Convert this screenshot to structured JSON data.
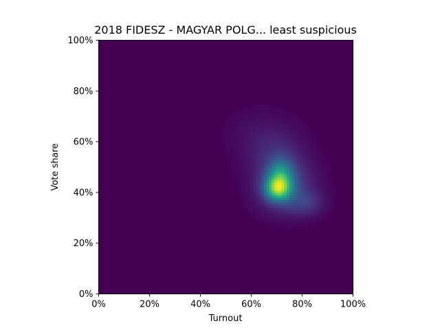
{
  "chart_data": {
    "type": "heatmap",
    "title": "2018 FIDESZ - MAGYAR POLG... least suspicious",
    "xlabel": "Turnout",
    "ylabel": "Vote share",
    "xlim": [
      0,
      1
    ],
    "ylim": [
      0,
      1
    ],
    "x_ticks": [
      "0%",
      "20%",
      "40%",
      "60%",
      "80%",
      "100%"
    ],
    "y_ticks": [
      "0%",
      "20%",
      "40%",
      "60%",
      "80%",
      "100%"
    ],
    "colormap": "viridis",
    "grid": false,
    "density_components": [
      {
        "x": 0.705,
        "y": 0.415,
        "sx": 0.035,
        "sy": 0.033,
        "w": 1.0
      },
      {
        "x": 0.715,
        "y": 0.47,
        "sx": 0.035,
        "sy": 0.045,
        "w": 0.62
      },
      {
        "x": 0.73,
        "y": 0.43,
        "sx": 0.075,
        "sy": 0.07,
        "w": 0.38
      },
      {
        "x": 0.81,
        "y": 0.36,
        "sx": 0.05,
        "sy": 0.035,
        "w": 0.23
      },
      {
        "x": 0.69,
        "y": 0.56,
        "sx": 0.08,
        "sy": 0.06,
        "w": 0.16
      },
      {
        "x": 0.64,
        "y": 0.65,
        "sx": 0.09,
        "sy": 0.06,
        "w": 0.06
      }
    ]
  }
}
